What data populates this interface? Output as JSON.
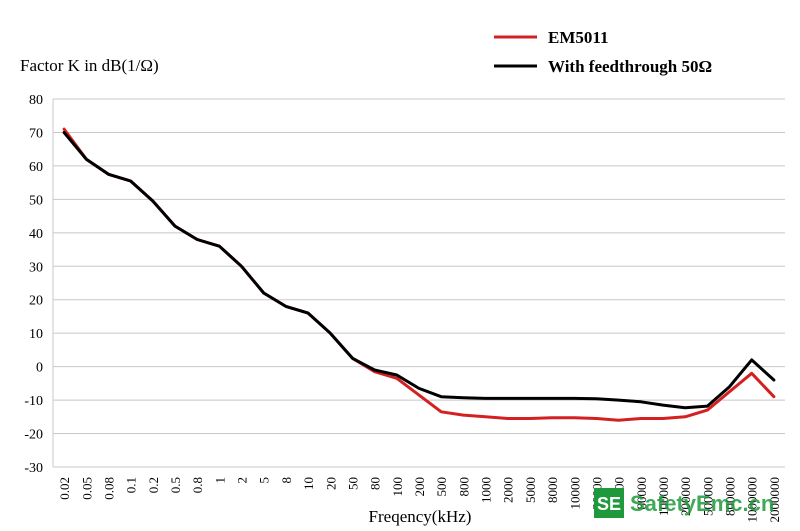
{
  "chart_data": {
    "type": "line",
    "ylabel": "Factor K in dB(1/Ω)",
    "xlabel": "Freqency(kHz)",
    "ylim": [
      -30,
      80
    ],
    "yticks": [
      80,
      70,
      60,
      50,
      40,
      30,
      20,
      10,
      0,
      -10,
      -20,
      -30
    ],
    "grid": "horizontal",
    "legend_position": "top-right",
    "categories": [
      "0.02",
      "0.05",
      "0.08",
      "0.1",
      "0.2",
      "0.5",
      "0.8",
      "1",
      "2",
      "5",
      "8",
      "10",
      "20",
      "50",
      "80",
      "100",
      "200",
      "500",
      "800",
      "1000",
      "2000",
      "5000",
      "8000",
      "10000",
      "20000",
      "50000",
      "80000",
      "100000",
      "200000",
      "500000",
      "800000",
      "1000000",
      "2000000"
    ],
    "series": [
      {
        "name": "EM5011",
        "color": "#d42020",
        "values": [
          71,
          62,
          57.5,
          55.5,
          49.5,
          42,
          38,
          36,
          30,
          22,
          18,
          16,
          10,
          2.5,
          -1.5,
          -3.5,
          -8.5,
          -13.5,
          -14.5,
          -15,
          -15.5,
          -15.5,
          -15.3,
          -15.3,
          -15.5,
          -16,
          -15.5,
          -15.5,
          -15,
          -13,
          -7.5,
          -2,
          -9
        ]
      },
      {
        "name": "With feedthrough 50Ω",
        "color": "#000000",
        "values": [
          70,
          62,
          57.5,
          55.5,
          49.5,
          42,
          38,
          36,
          30,
          22,
          18,
          16,
          10,
          2.5,
          -1,
          -2.5,
          -6.5,
          -9,
          -9.3,
          -9.5,
          -9.5,
          -9.5,
          -9.5,
          -9.5,
          -9.6,
          -10,
          -10.5,
          -11.5,
          -12.3,
          -11.8,
          -6,
          2,
          -4
        ]
      }
    ]
  },
  "watermark": {
    "badge": "SE",
    "text": "SafetyEmc.cn",
    "color": "#1e9a3c"
  }
}
